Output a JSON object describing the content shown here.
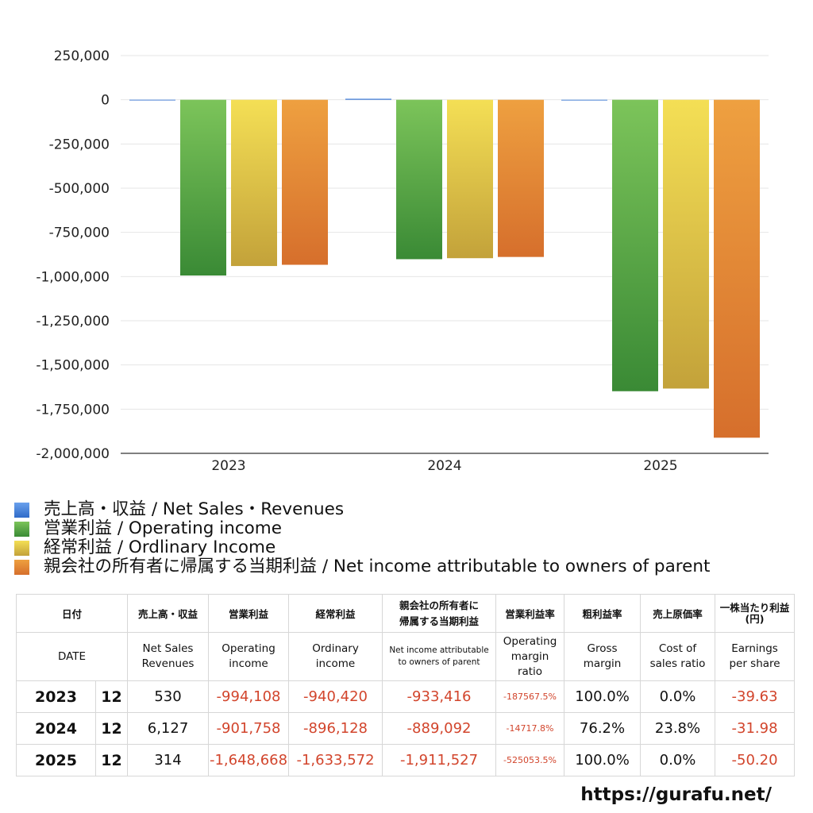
{
  "chart_data": {
    "type": "bar",
    "categories": [
      "2023",
      "2024",
      "2025"
    ],
    "series": [
      {
        "name": "売上高・収益 / Net Sales・Revenues",
        "values": [
          530,
          6127,
          314
        ],
        "color": "#3b78d8"
      },
      {
        "name": "営業利益 / Operating income",
        "values": [
          -994108,
          -901758,
          -1648668
        ],
        "color": "#4a9a3e"
      },
      {
        "name": "経常利益 / Ordlinary Income",
        "values": [
          -940420,
          -896128,
          -1633572
        ],
        "color": "#d9bf40"
      },
      {
        "name": "親会社の所有者に帰属する当期利益 / Net income attributable to owners of parent",
        "values": [
          -933416,
          -889092,
          -1911527
        ],
        "color": "#e07d33"
      }
    ],
    "ylim": [
      -2000000,
      250000
    ],
    "yticks": [
      "250,000",
      "0",
      "-250,000",
      "-500,000",
      "-750,000",
      "-1,000,000",
      "-1,250,000",
      "-1,500,000",
      "-1,750,000",
      "-2,000,000"
    ],
    "ytick_values": [
      250000,
      0,
      -250000,
      -500000,
      -750000,
      -1000000,
      -1250000,
      -1500000,
      -1750000,
      -2000000
    ],
    "grid": true,
    "legend_position": "bottom"
  },
  "legend": [
    {
      "label": "売上高・収益 / Net Sales・Revenues",
      "color": "#3b78d8"
    },
    {
      "label": "営業利益 / Operating income",
      "color": "#4a9a3e"
    },
    {
      "label": "経常利益 / Ordlinary Income",
      "color": "#d9bf40"
    },
    {
      "label": "親会社の所有者に帰属する当期利益 / Net income attributable to owners of parent",
      "color": "#e07d33"
    }
  ],
  "table": {
    "header_jp": {
      "date": "日付",
      "sales": "売上高・収益",
      "operating": "営業利益",
      "ordinary": "経常利益",
      "net_line1": "親会社の所有者に",
      "net_line2": "帰属する当期利益",
      "op_margin": "営業利益率",
      "gross": "粗利益率",
      "cost": "売上原価率",
      "eps_line1": "一株当たり利益",
      "eps_line2": "(円)"
    },
    "header_en": {
      "date": "DATE",
      "sales_line1": "Net Sales",
      "sales_line2": "Revenues",
      "operating_line1": "Operating",
      "operating_line2": "income",
      "ordinary_line1": "Ordinary",
      "ordinary_line2": "income",
      "net_line1": "Net income attributable",
      "net_line2": "to owners of parent",
      "op_margin_line1": "Operating",
      "op_margin_line2": "margin",
      "op_margin_line3": "ratio",
      "gross_line1": "Gross",
      "gross_line2": "margin",
      "cost_line1": "Cost of",
      "cost_line2": "sales ratio",
      "eps_line1": "Earnings",
      "eps_line2": "per share"
    },
    "rows": [
      {
        "year": "2023",
        "month": "12",
        "sales": "530",
        "operating": "-994,108",
        "ordinary": "-940,420",
        "net": "-933,416",
        "op_margin": "-187567.5%",
        "gross": "100.0%",
        "cost": "0.0%",
        "eps": "-39.63"
      },
      {
        "year": "2024",
        "month": "12",
        "sales": "6,127",
        "operating": "-901,758",
        "ordinary": "-896,128",
        "net": "-889,092",
        "op_margin": "-14717.8%",
        "gross": "76.2%",
        "cost": "23.8%",
        "eps": "-31.98"
      },
      {
        "year": "2025",
        "month": "12",
        "sales": "314",
        "operating": "-1,648,668",
        "ordinary": "-1,633,572",
        "net": "-1,911,527",
        "op_margin": "-525053.5%",
        "gross": "100.0%",
        "cost": "0.0%",
        "eps": "-50.20"
      }
    ]
  },
  "site_url": "https://gurafu.net/"
}
